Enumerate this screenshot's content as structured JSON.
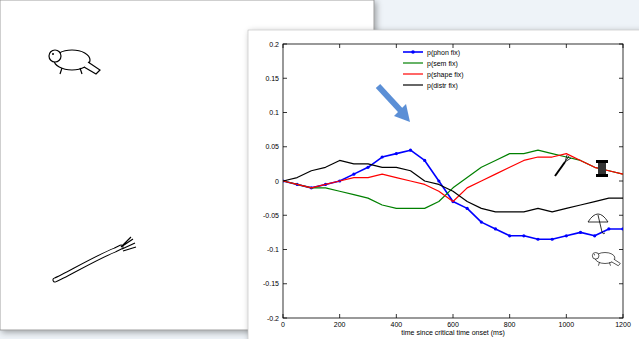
{
  "chart_data": {
    "type": "line",
    "x_label": "time since critical time onset (ms)",
    "x": [
      0,
      50,
      100,
      150,
      200,
      250,
      300,
      350,
      400,
      450,
      500,
      550,
      600,
      650,
      700,
      750,
      800,
      850,
      900,
      950,
      1000,
      1050,
      1100,
      1150,
      1200
    ],
    "series": [
      {
        "name": "p(phon fix)",
        "color": "#0000ff",
        "marker": "dot",
        "values": [
          0,
          -0.005,
          -0.01,
          -0.005,
          0,
          0.01,
          0.02,
          0.035,
          0.04,
          0.045,
          0.03,
          0.0,
          -0.03,
          -0.04,
          -0.06,
          -0.07,
          -0.08,
          -0.08,
          -0.085,
          -0.085,
          -0.08,
          -0.075,
          -0.08,
          -0.07,
          -0.07
        ]
      },
      {
        "name": "p(sem fix)",
        "color": "#008000",
        "values": [
          0,
          -0.005,
          -0.01,
          -0.01,
          -0.015,
          -0.02,
          -0.025,
          -0.035,
          -0.04,
          -0.04,
          -0.04,
          -0.03,
          -0.01,
          0.005,
          0.02,
          0.03,
          0.04,
          0.04,
          0.045,
          0.04,
          0.035,
          0.03,
          0.02,
          0.015,
          0.01
        ]
      },
      {
        "name": "p(shape fix)",
        "color": "#ff0000",
        "values": [
          0,
          -0.005,
          -0.01,
          -0.005,
          0,
          0.005,
          0.005,
          0.01,
          0.005,
          0,
          -0.005,
          -0.015,
          -0.03,
          -0.01,
          0.0,
          0.01,
          0.02,
          0.03,
          0.035,
          0.035,
          0.04,
          0.03,
          0.02,
          0.015,
          0.01
        ]
      },
      {
        "name": "p(distr fix)",
        "color": "#000000",
        "values": [
          0,
          0.005,
          0.015,
          0.02,
          0.03,
          0.025,
          0.025,
          0.02,
          0.02,
          0.015,
          0.0,
          -0.005,
          -0.015,
          -0.03,
          -0.04,
          -0.045,
          -0.045,
          -0.045,
          -0.04,
          -0.045,
          -0.04,
          -0.035,
          -0.03,
          -0.025,
          -0.025
        ]
      }
    ],
    "xlim": [
      0,
      1200
    ],
    "xticks": [
      0,
      200,
      400,
      600,
      800,
      1000,
      1200
    ],
    "ylim": [
      -0.2,
      0.2
    ],
    "yticks": [
      -0.2,
      -0.15,
      -0.1,
      -0.05,
      0,
      0.05,
      0.1,
      0.15,
      0.2
    ],
    "legend": "top",
    "grid": false
  }
}
